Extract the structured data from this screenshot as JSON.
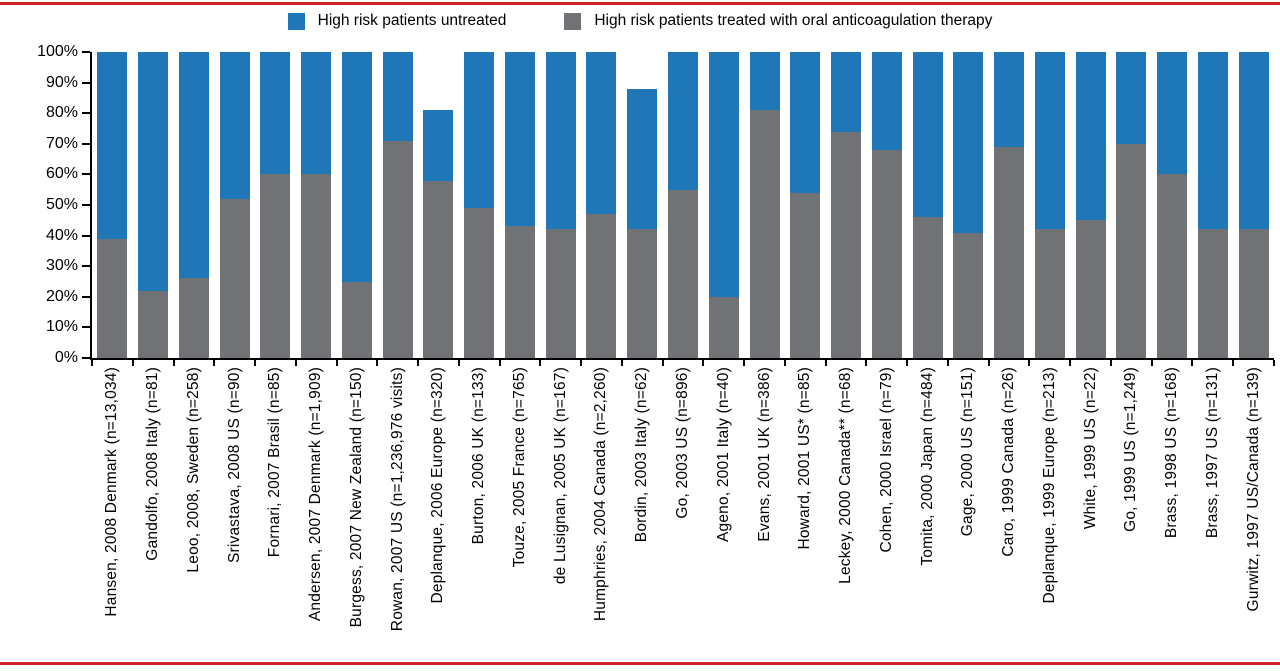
{
  "figure": {
    "rule_color": "#cf2128",
    "background": "#ffffff"
  },
  "legend": {
    "items": [
      {
        "name": "untreated",
        "label": "High risk patients untreated",
        "color": "#1f77b8"
      },
      {
        "name": "treated",
        "label": "High risk patients treated with oral anticoagulation therapy",
        "color": "#707275"
      }
    ]
  },
  "chart_data": {
    "type": "bar",
    "stacked": true,
    "orientation": "vertical",
    "title": "",
    "xlabel": "",
    "ylabel": "",
    "ylim": [
      0,
      100
    ],
    "ytick_step": 10,
    "ytick_labels": [
      "0%",
      "10%",
      "20%",
      "30%",
      "40%",
      "50%",
      "60%",
      "70%",
      "80%",
      "90%",
      "100%"
    ],
    "grid": false,
    "legend_position": "top-center",
    "categories": [
      "Hansen, 2008 Denmark (n=13,034)",
      "Gandolfo, 2008 Italy (n=81)",
      "Leoo, 2008, Sweden (n=258)",
      "Srivastava, 2008 US (n=90)",
      "Fornari, 2007 Brasil (n=85)",
      "Andersen, 2007 Denmark (n=1,909)",
      "Burgess, 2007 New Zealand (n=150)",
      "Rowan, 2007 US (n=1,236,976 visits)",
      "Deplanque, 2006 Europe (n=320)",
      "Burton, 2006 UK (n=133)",
      "Touze, 2005 France (n=765)",
      "de Lusignan, 2005 UK (n=167)",
      "Humphries, 2004 Canada (n=2,260)",
      "Bordin, 2003 Italy (n=62)",
      "Go, 2003 US (n=896)",
      "Ageno, 2001 Italy (n=40)",
      "Evans, 2001 UK (n=386)",
      "Howard, 2001 US* (n=85)",
      "Leckey, 2000 Canada** (n=68)",
      "Cohen, 2000 Israel (n=79)",
      "Tomita, 2000 Japan (n=484)",
      "Gage, 2000 US (n=151)",
      "Caro, 1999 Canada (n=26)",
      "Deplanque, 1999 Europe (n=213)",
      "White, 1999 US (n=22)",
      "Go, 1999 US (n=1,249)",
      "Brass, 1998 US (n=168)",
      "Brass, 1997 US (n=131)",
      "Gurwitz, 1997 US/Canada (n=139)"
    ],
    "series": [
      {
        "name": "High risk patients treated with oral anticoagulation therapy",
        "color": "#707275",
        "values": [
          39,
          22,
          26,
          52,
          60,
          60,
          25,
          71,
          58,
          49,
          43,
          42,
          47,
          42,
          55,
          20,
          81,
          54,
          74,
          68,
          46,
          41,
          69,
          42,
          45,
          70,
          60,
          42,
          42
        ]
      },
      {
        "name": "High risk patients untreated",
        "color": "#1f77b8",
        "values": [
          61,
          78,
          74,
          48,
          40,
          40,
          75,
          29,
          23,
          51,
          57,
          58,
          53,
          46,
          45,
          80,
          19,
          46,
          26,
          32,
          54,
          59,
          31,
          58,
          55,
          30,
          40,
          58,
          58
        ]
      }
    ],
    "totals": [
      100,
      100,
      100,
      100,
      100,
      100,
      100,
      100,
      81,
      100,
      100,
      100,
      100,
      88,
      100,
      100,
      100,
      100,
      100,
      100,
      100,
      100,
      100,
      100,
      100,
      100,
      100,
      100,
      100
    ]
  }
}
